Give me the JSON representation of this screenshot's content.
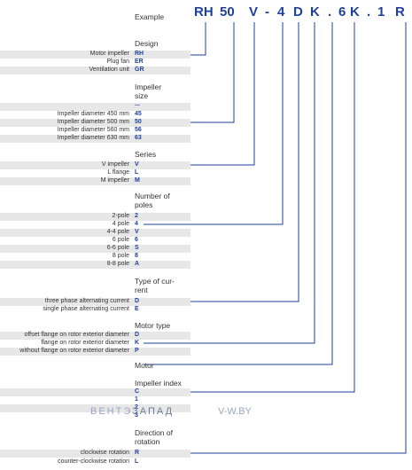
{
  "example_label": "Example",
  "code_chars": [
    "RH",
    "50",
    "V",
    "-",
    "4",
    "D",
    "K",
    ".",
    "6",
    "K",
    ".",
    "1",
    "R"
  ],
  "sections": {
    "design": {
      "title": "Design",
      "rows": [
        [
          "Motor impeller",
          "RH"
        ],
        [
          "Plug fan",
          "ER"
        ],
        [
          "Ventilation unit",
          "GR"
        ]
      ]
    },
    "impeller_size": {
      "title": "Impeller size",
      "title_lines": [
        "Impeller",
        "size"
      ],
      "rows": [
        [
          "",
          "..."
        ],
        [
          "Impeller diameter 450 mm",
          "45"
        ],
        [
          "Impeller diameter 500 mm",
          "50"
        ],
        [
          "Impeller diameter 560 mm",
          "56"
        ],
        [
          "Impeller diameter 630 mm",
          "63"
        ]
      ]
    },
    "series": {
      "title": "Series",
      "rows": [
        [
          "V impeller",
          "V"
        ],
        [
          "L flange",
          "L"
        ],
        [
          "M impeller",
          "M"
        ]
      ]
    },
    "poles": {
      "title": "Number of poles",
      "title_lines": [
        "Number of",
        "poles"
      ],
      "rows": [
        [
          "2-pole",
          "2"
        ],
        [
          "4 pole",
          "4"
        ],
        [
          "4-4 pole",
          "V"
        ],
        [
          "6 pole",
          "6"
        ],
        [
          "6-6 pole",
          "S"
        ],
        [
          "8 pole",
          "8"
        ],
        [
          "8-8 pole",
          "A"
        ]
      ]
    },
    "current": {
      "title": "Type of current",
      "title_lines": [
        "Type of cur-",
        "rent"
      ],
      "rows": [
        [
          "three phase alternating current",
          "D"
        ],
        [
          "single phase alternating current",
          "E"
        ]
      ]
    },
    "motor_type": {
      "title": "Motor type",
      "rows": [
        [
          "offset flange on rotor exterior diameter",
          "D"
        ],
        [
          "flange on rotor exterior diameter",
          "K"
        ],
        [
          "without flange on rotor exterior diameter",
          "P"
        ]
      ]
    },
    "motor": {
      "title": "Motor"
    },
    "impeller_index": {
      "title": "Impeller index",
      "rows": [
        [
          "",
          "C"
        ],
        [
          "",
          "1"
        ],
        [
          "",
          "2"
        ],
        [
          "",
          "3"
        ]
      ]
    },
    "rotation": {
      "title": "Direction of rotation",
      "title_lines": [
        "Direction of",
        "rotation"
      ],
      "rows": [
        [
          "clockwise rotation",
          "R"
        ],
        [
          "counter-clockwise rotation",
          "L"
        ]
      ]
    }
  },
  "watermark": {
    "brand_a": "ВЕНТЭ",
    "brand_b": "ЗАПАД",
    "site": "V-W.BY"
  },
  "colors": {
    "accent": "#1f3f9c",
    "band": "#e7e7e7",
    "text": "#333333"
  }
}
